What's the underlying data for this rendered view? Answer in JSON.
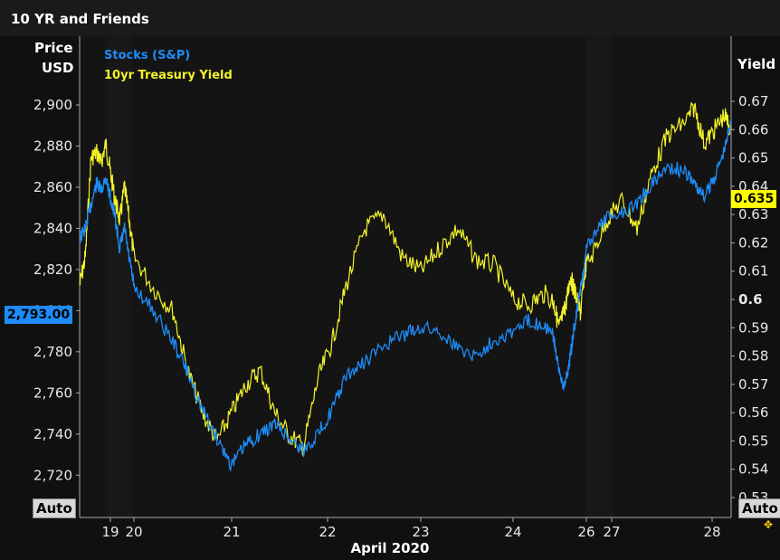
{
  "window": {
    "title": "10 YR and Friends"
  },
  "axes": {
    "left_title_line1": "Price",
    "left_title_line2": "USD",
    "right_title": "Yield",
    "auto_left": "Auto",
    "auto_right": "Auto",
    "x_title": "April 2020"
  },
  "badges": {
    "price": "2,793.00",
    "yield": "0.635"
  },
  "legend": {
    "stocks": "Stocks (S&P)",
    "yield": "10yr Treasury Yield"
  },
  "colors": {
    "stocks": "#1d8cf8",
    "yield": "#f4f42a",
    "background": "#101010",
    "grid": "#2a2a2a"
  },
  "icons": {
    "corner": "drag-cursor-icon"
  },
  "chart_data": {
    "type": "line",
    "title": "10 YR and Friends",
    "xlabel": "April 2020",
    "x_ticks": [
      "19",
      "20",
      "21",
      "22",
      "23",
      "24",
      "26",
      "27",
      "28"
    ],
    "left_axis": {
      "label": "Price USD",
      "ticks": [
        "2,720",
        "2,740",
        "2,760",
        "2,780",
        "2,800",
        "2,820",
        "2,840",
        "2,860",
        "2,880",
        "2,900"
      ],
      "range": [
        2700,
        2910
      ]
    },
    "right_axis": {
      "label": "Yield",
      "ticks": [
        "0.53",
        "0.54",
        "0.55",
        "0.56",
        "0.57",
        "0.58",
        "0.59",
        "0.6",
        "0.61",
        "0.62",
        "0.63",
        "0.64",
        "0.65",
        "0.66",
        "0.67"
      ],
      "range": [
        0.525,
        0.675
      ]
    },
    "series": [
      {
        "name": "Stocks (S&P)",
        "axis": "left",
        "values": [
          [
            0.0,
            2835
          ],
          [
            0.15,
            2840
          ],
          [
            0.3,
            2852
          ],
          [
            0.45,
            2862
          ],
          [
            0.6,
            2858
          ],
          [
            0.8,
            2865
          ],
          [
            1.0,
            2855
          ],
          [
            1.2,
            2845
          ],
          [
            1.4,
            2830
          ],
          [
            1.6,
            2840
          ],
          [
            1.8,
            2825
          ],
          [
            2.0,
            2812
          ],
          [
            2.2,
            2800
          ],
          [
            2.4,
            2785
          ],
          [
            2.55,
            2770
          ],
          [
            2.7,
            2752
          ],
          [
            2.85,
            2738
          ],
          [
            3.0,
            2725
          ],
          [
            3.15,
            2735
          ],
          [
            3.3,
            2740
          ],
          [
            3.45,
            2745
          ],
          [
            3.6,
            2738
          ],
          [
            3.75,
            2732
          ],
          [
            3.9,
            2740
          ],
          [
            4.05,
            2752
          ],
          [
            4.2,
            2768
          ],
          [
            4.4,
            2775
          ],
          [
            4.6,
            2783
          ],
          [
            4.8,
            2788
          ],
          [
            5.0,
            2792
          ],
          [
            5.2,
            2790
          ],
          [
            5.4,
            2782
          ],
          [
            5.6,
            2778
          ],
          [
            5.8,
            2786
          ],
          [
            6.0,
            2790
          ],
          [
            6.2,
            2795
          ],
          [
            6.4,
            2793
          ],
          [
            6.6,
            2785
          ],
          [
            6.8,
            2770
          ],
          [
            7.0,
            2764
          ],
          [
            7.15,
            2768
          ],
          [
            7.3,
            2778
          ],
          [
            7.45,
            2790
          ],
          [
            7.6,
            2800
          ],
          [
            7.75,
            2812
          ],
          [
            7.9,
            2820
          ],
          [
            8.05,
            2835
          ],
          [
            8.2,
            2845
          ],
          [
            8.35,
            2848
          ],
          [
            8.5,
            2852
          ],
          [
            8.65,
            2862
          ],
          [
            8.8,
            2870
          ],
          [
            8.95,
            2868
          ],
          [
            9.1,
            2862
          ],
          [
            9.25,
            2855
          ],
          [
            9.4,
            2865
          ],
          [
            9.55,
            2878
          ],
          [
            9.65,
            2893
          ]
        ]
      },
      {
        "name": "10yr Treasury Yield",
        "axis": "right",
        "values": [
          [
            0.0,
            0.605
          ],
          [
            0.15,
            0.615
          ],
          [
            0.3,
            0.65
          ],
          [
            0.45,
            0.652
          ],
          [
            0.6,
            0.648
          ],
          [
            0.8,
            0.655
          ],
          [
            1.0,
            0.645
          ],
          [
            1.2,
            0.635
          ],
          [
            1.4,
            0.628
          ],
          [
            1.6,
            0.64
          ],
          [
            1.8,
            0.628
          ],
          [
            2.0,
            0.615
          ],
          [
            2.2,
            0.604
          ],
          [
            2.4,
            0.596
          ],
          [
            2.55,
            0.575
          ],
          [
            2.7,
            0.56
          ],
          [
            2.85,
            0.55
          ],
          [
            3.0,
            0.56
          ],
          [
            3.15,
            0.57
          ],
          [
            3.3,
            0.575
          ],
          [
            3.45,
            0.56
          ],
          [
            3.6,
            0.552
          ],
          [
            3.75,
            0.548
          ],
          [
            3.9,
            0.572
          ],
          [
            4.05,
            0.585
          ],
          [
            4.2,
            0.605
          ],
          [
            4.4,
            0.625
          ],
          [
            4.6,
            0.63
          ],
          [
            4.8,
            0.615
          ],
          [
            5.0,
            0.61
          ],
          [
            5.2,
            0.618
          ],
          [
            5.4,
            0.625
          ],
          [
            5.6,
            0.614
          ],
          [
            5.8,
            0.612
          ],
          [
            6.0,
            0.6
          ],
          [
            6.2,
            0.598
          ],
          [
            6.4,
            0.602
          ],
          [
            6.6,
            0.598
          ],
          [
            6.8,
            0.59
          ],
          [
            7.0,
            0.595
          ],
          [
            7.15,
            0.6
          ],
          [
            7.3,
            0.608
          ],
          [
            7.45,
            0.604
          ],
          [
            7.6,
            0.6
          ],
          [
            7.75,
            0.595
          ],
          [
            7.9,
            0.608
          ],
          [
            8.05,
            0.615
          ],
          [
            8.2,
            0.628
          ],
          [
            8.35,
            0.635
          ],
          [
            8.5,
            0.625
          ],
          [
            8.65,
            0.645
          ],
          [
            8.8,
            0.658
          ],
          [
            8.95,
            0.662
          ],
          [
            9.1,
            0.668
          ],
          [
            9.25,
            0.655
          ],
          [
            9.4,
            0.66
          ],
          [
            9.55,
            0.665
          ],
          [
            9.65,
            0.66
          ]
        ]
      }
    ],
    "current_values": {
      "stocks": 2793.0,
      "yield": 0.635
    },
    "grid": false,
    "legend_position": "top-left"
  }
}
